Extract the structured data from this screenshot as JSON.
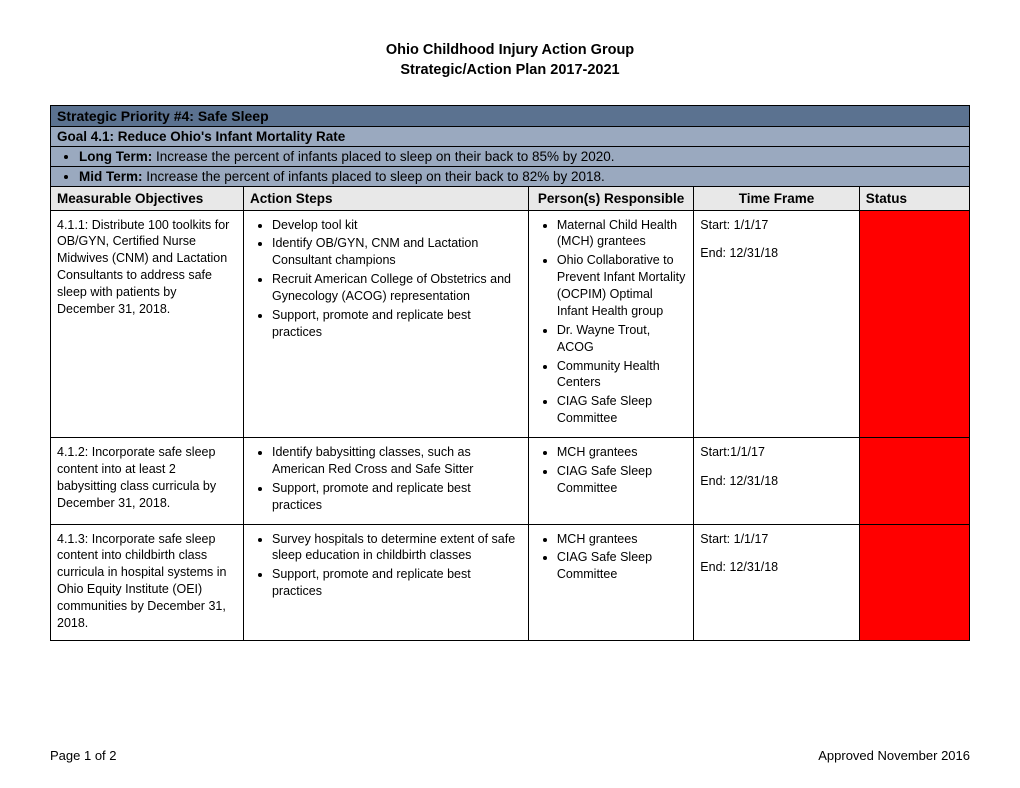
{
  "header": {
    "line1": "Ohio Childhood Injury Action Group",
    "line2": "Strategic/Action Plan 2017-2021"
  },
  "priority": "Strategic Priority #4: Safe Sleep",
  "goal": "Goal 4.1:  Reduce Ohio's Infant Mortality Rate",
  "long_term_label": "Long Term:",
  "long_term_text": " Increase the percent of infants placed to sleep on their back to 85% by 2020.",
  "mid_term_label": "Mid Term:",
  "mid_term_text": " Increase the percent of infants placed to sleep on their back to 82% by 2018.",
  "columns": {
    "c1": "Measurable Objectives",
    "c2": "Action Steps",
    "c3": "Person(s) Responsible",
    "c4": "Time Frame",
    "c5": "Status"
  },
  "rows": [
    {
      "objective": "4.1.1: Distribute 100 toolkits for OB/GYN, Certified Nurse Midwives (CNM) and Lactation Consultants to address safe sleep with patients by December 31, 2018.",
      "actions": [
        "Develop tool kit",
        "Identify OB/GYN, CNM and Lactation Consultant champions",
        "Recruit American College of Obstetrics and Gynecology (ACOG) representation",
        "Support, promote and replicate best practices"
      ],
      "persons": [
        "Maternal Child Health (MCH) grantees",
        "Ohio Collaborative to Prevent Infant Mortality (OCPIM) Optimal Infant Health group",
        "Dr. Wayne Trout, ACOG",
        "Community Health Centers",
        "CIAG Safe Sleep Committee"
      ],
      "tf_start": "Start:  1/1/17",
      "tf_end": "End: 12/31/18",
      "status_color": "#ff0000"
    },
    {
      "objective": "4.1.2: Incorporate safe sleep content into at least 2 babysitting class curricula by December 31, 2018.",
      "actions": [
        "Identify babysitting classes, such as American Red Cross and Safe Sitter",
        "Support, promote and replicate best practices"
      ],
      "persons": [
        "MCH grantees",
        "CIAG Safe Sleep Committee"
      ],
      "tf_start": "Start:1/1/17",
      "tf_end": "End: 12/31/18",
      "status_color": "#ff0000"
    },
    {
      "objective": "4.1.3: Incorporate safe sleep content into childbirth class curricula in hospital systems in Ohio Equity Institute (OEI) communities by December 31, 2018.",
      "actions": [
        "Survey hospitals to determine extent of safe sleep education in childbirth classes",
        "Support, promote and replicate best practices"
      ],
      "persons": [
        "MCH grantees",
        "CIAG Safe Sleep Committee"
      ],
      "tf_start": "Start: 1/1/17",
      "tf_end": "End: 12/31/18",
      "status_color": "#ff0000"
    }
  ],
  "footer": {
    "left": "Page 1 of 2",
    "right": "Approved November 2016"
  }
}
